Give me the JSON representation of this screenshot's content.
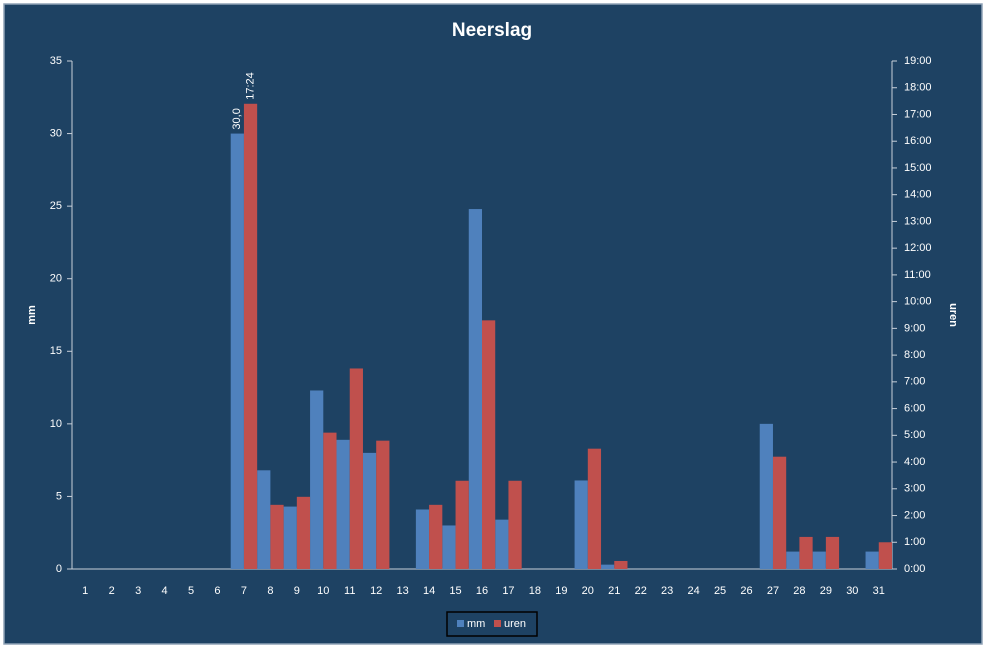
{
  "chart_data": {
    "type": "bar",
    "title": "Neerslag",
    "y_label": "mm",
    "y2_label": "uren",
    "categories": [
      "1",
      "2",
      "3",
      "4",
      "5",
      "6",
      "7",
      "8",
      "9",
      "10",
      "11",
      "12",
      "13",
      "14",
      "15",
      "16",
      "17",
      "18",
      "19",
      "20",
      "21",
      "22",
      "23",
      "24",
      "25",
      "26",
      "27",
      "28",
      "29",
      "30",
      "31"
    ],
    "series": [
      {
        "name": "mm",
        "color": "#4f81bd",
        "values": [
          0,
          0,
          0,
          0,
          0,
          0,
          30,
          6.8,
          4.3,
          12.3,
          8.9,
          8.0,
          0,
          4.1,
          3.0,
          24.8,
          3.4,
          0,
          0,
          6.1,
          0.3,
          0,
          0,
          0,
          0,
          0,
          10.0,
          1.2,
          1.2,
          0,
          1.2
        ],
        "value_labels": [
          null,
          null,
          null,
          null,
          null,
          null,
          "30,0",
          null,
          null,
          null,
          null,
          null,
          null,
          null,
          null,
          null,
          null,
          null,
          null,
          null,
          null,
          null,
          null,
          null,
          null,
          null,
          null,
          null,
          null,
          null,
          null
        ]
      },
      {
        "name": "uren",
        "color": "#c0504d",
        "axis": "y2",
        "values": [
          0,
          0,
          0,
          0,
          0,
          0,
          17.4,
          2.4,
          2.7,
          5.1,
          7.5,
          4.8,
          0,
          2.4,
          3.3,
          9.3,
          3.3,
          0,
          0,
          4.5,
          0.3,
          0,
          0,
          0,
          0,
          0,
          4.2,
          1.2,
          1.2,
          0,
          1.0
        ],
        "value_labels": [
          null,
          null,
          null,
          null,
          null,
          null,
          "17:24",
          null,
          null,
          null,
          null,
          null,
          null,
          null,
          null,
          null,
          null,
          null,
          null,
          null,
          null,
          null,
          null,
          null,
          null,
          null,
          null,
          null,
          null,
          null,
          null
        ]
      }
    ],
    "ylim": [
      0,
      35
    ],
    "yticks": [
      0,
      5,
      10,
      15,
      20,
      25,
      30,
      35
    ],
    "y2lim": [
      0,
      19
    ],
    "y2ticks": [
      {
        "value": 0,
        "label": "0:00"
      },
      {
        "value": 1,
        "label": "1:00"
      },
      {
        "value": 2,
        "label": "2:00"
      },
      {
        "value": 3,
        "label": "3:00"
      },
      {
        "value": 4,
        "label": "4:00"
      },
      {
        "value": 5,
        "label": "5:00"
      },
      {
        "value": 6,
        "label": "6:00"
      },
      {
        "value": 7,
        "label": "7:00"
      },
      {
        "value": 8,
        "label": "8:00"
      },
      {
        "value": 9,
        "label": "9:00"
      },
      {
        "value": 10,
        "label": "10:00"
      },
      {
        "value": 11,
        "label": "11:00"
      },
      {
        "value": 12,
        "label": "12:00"
      },
      {
        "value": 13,
        "label": "13:00"
      },
      {
        "value": 14,
        "label": "14:00"
      },
      {
        "value": 15,
        "label": "15:00"
      },
      {
        "value": 16,
        "label": "16:00"
      },
      {
        "value": 17,
        "label": "17:00"
      },
      {
        "value": 18,
        "label": "18:00"
      },
      {
        "value": 19,
        "label": "19:00"
      }
    ],
    "grid": false,
    "legend": "bottom"
  }
}
